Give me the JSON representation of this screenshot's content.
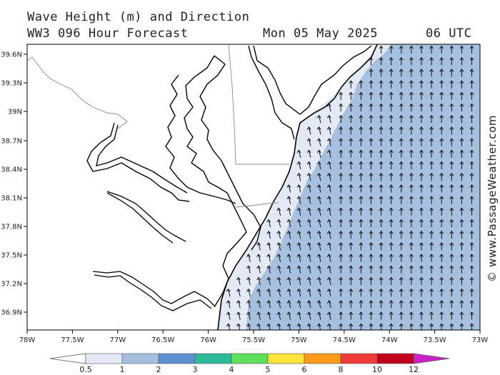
{
  "title": {
    "line1": "Wave Height (m) and Direction",
    "line2": "WW3 096 Hour Forecast",
    "date": "Mon 05 May 2025",
    "time": "06 UTC"
  },
  "credit": "© www.PassageWeather.com",
  "map": {
    "region": "Mid-Atlantic coast, Chesapeake and Delaware Bays",
    "lon_range": [
      -78,
      -73
    ],
    "lat_range": [
      36.7,
      39.7
    ],
    "lat_ticks": [
      "39.6N",
      "39.3N",
      "39N",
      "38.7N",
      "38.4N",
      "38.1N",
      "37.8N",
      "37.5N",
      "37.2N",
      "36.9N"
    ],
    "lon_ticks": [
      "78W",
      "77.5W",
      "77W",
      "76.5W",
      "76W",
      "75.5W",
      "75W",
      "74.5W",
      "74W",
      "73.5W",
      "73W"
    ],
    "land_color": "#ffffff",
    "wave_colors": {
      "0.5-1": "#e3e9f5",
      "1-2": "#a8c0e0"
    },
    "arrow_direction": "north to north-northwest"
  },
  "legend": {
    "labels": [
      "0.5",
      "1",
      "2",
      "3",
      "4",
      "5",
      "6",
      "8",
      "10",
      "12"
    ],
    "colors": [
      "#e3e9f5",
      "#a8c0e0",
      "#5b8fd0",
      "#2cb99a",
      "#5fe05a",
      "#ffe23a",
      "#ff9a1a",
      "#f03a3a",
      "#c0001a",
      "#cc22cc"
    ]
  }
}
